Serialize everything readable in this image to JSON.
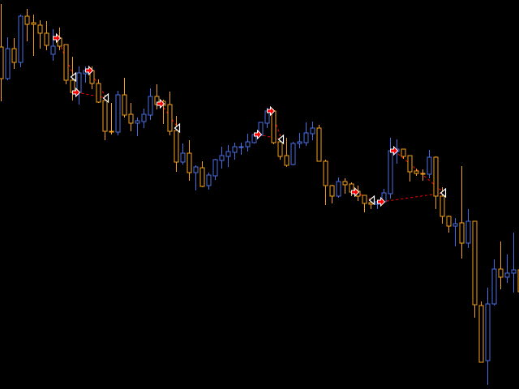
{
  "chart_data": {
    "type": "candlestick",
    "title": "",
    "xlabel": "",
    "ylabel": "",
    "grid": false,
    "ylim": [
      0,
      480
    ],
    "colors": {
      "background": "#000000",
      "bull": "#4a6fe3",
      "bear": "#f7a21b",
      "entry_arrow": "#ff0000",
      "entry_outline": "#ffffff",
      "exit_marker": "#ffffff",
      "trade_line": "#ff0000"
    },
    "candles": [
      {
        "o": 422,
        "h": 475,
        "l": 355,
        "c": 383
      },
      {
        "o": 383,
        "h": 434,
        "l": 381,
        "c": 420
      },
      {
        "o": 420,
        "h": 433,
        "l": 395,
        "c": 403
      },
      {
        "o": 403,
        "h": 462,
        "l": 397,
        "c": 460
      },
      {
        "o": 460,
        "h": 469,
        "l": 429,
        "c": 450
      },
      {
        "o": 452,
        "h": 462,
        "l": 411,
        "c": 450
      },
      {
        "o": 449,
        "h": 455,
        "l": 420,
        "c": 439
      },
      {
        "o": 439,
        "h": 454,
        "l": 418,
        "c": 424
      },
      {
        "o": 413,
        "h": 444,
        "l": 405,
        "c": 423
      },
      {
        "o": 433,
        "h": 446,
        "l": 418,
        "c": 423
      },
      {
        "o": 425,
        "h": 425,
        "l": 376,
        "c": 381
      },
      {
        "o": 381,
        "h": 410,
        "l": 356,
        "c": 366
      },
      {
        "o": 366,
        "h": 398,
        "l": 351,
        "c": 390
      },
      {
        "o": 389,
        "h": 398,
        "l": 378,
        "c": 393
      },
      {
        "o": 393,
        "h": 398,
        "l": 370,
        "c": 377
      },
      {
        "o": 377,
        "h": 382,
        "l": 353,
        "c": 354
      },
      {
        "o": 356,
        "h": 363,
        "l": 307,
        "c": 318
      },
      {
        "o": 318,
        "h": 353,
        "l": 314,
        "c": 317
      },
      {
        "o": 317,
        "h": 368,
        "l": 313,
        "c": 363
      },
      {
        "o": 363,
        "h": 384,
        "l": 335,
        "c": 338
      },
      {
        "o": 339,
        "h": 353,
        "l": 318,
        "c": 328
      },
      {
        "o": 328,
        "h": 335,
        "l": 312,
        "c": 331
      },
      {
        "o": 330,
        "h": 346,
        "l": 322,
        "c": 339
      },
      {
        "o": 338,
        "h": 371,
        "l": 332,
        "c": 361
      },
      {
        "o": 361,
        "h": 376,
        "l": 345,
        "c": 351
      },
      {
        "o": 355,
        "h": 357,
        "l": 327,
        "c": 350
      },
      {
        "o": 351,
        "h": 367,
        "l": 313,
        "c": 318
      },
      {
        "o": 319,
        "h": 337,
        "l": 268,
        "c": 280
      },
      {
        "o": 280,
        "h": 303,
        "l": 277,
        "c": 291
      },
      {
        "o": 291,
        "h": 307,
        "l": 257,
        "c": 267
      },
      {
        "o": 267,
        "h": 276,
        "l": 245,
        "c": 274
      },
      {
        "o": 273,
        "h": 281,
        "l": 249,
        "c": 250
      },
      {
        "o": 251,
        "h": 267,
        "l": 246,
        "c": 264
      },
      {
        "o": 263,
        "h": 284,
        "l": 258,
        "c": 283
      },
      {
        "o": 282,
        "h": 299,
        "l": 272,
        "c": 288
      },
      {
        "o": 287,
        "h": 301,
        "l": 274,
        "c": 293
      },
      {
        "o": 292,
        "h": 304,
        "l": 283,
        "c": 299
      },
      {
        "o": 298,
        "h": 304,
        "l": 289,
        "c": 299
      },
      {
        "o": 299,
        "h": 315,
        "l": 293,
        "c": 305
      },
      {
        "o": 304,
        "h": 314,
        "l": 303,
        "c": 314
      },
      {
        "o": 313,
        "h": 329,
        "l": 312,
        "c": 329
      },
      {
        "o": 328,
        "h": 347,
        "l": 322,
        "c": 343
      },
      {
        "o": 343,
        "h": 345,
        "l": 302,
        "c": 304
      },
      {
        "o": 305,
        "h": 310,
        "l": 283,
        "c": 287
      },
      {
        "o": 288,
        "h": 310,
        "l": 274,
        "c": 276
      },
      {
        "o": 277,
        "h": 305,
        "l": 276,
        "c": 303
      },
      {
        "o": 303,
        "h": 316,
        "l": 297,
        "c": 305
      },
      {
        "o": 304,
        "h": 329,
        "l": 300,
        "c": 316
      },
      {
        "o": 315,
        "h": 330,
        "l": 307,
        "c": 322
      },
      {
        "o": 322,
        "h": 326,
        "l": 281,
        "c": 281
      },
      {
        "o": 281,
        "h": 283,
        "l": 227,
        "c": 251
      },
      {
        "o": 251,
        "h": 252,
        "l": 229,
        "c": 238
      },
      {
        "o": 238,
        "h": 261,
        "l": 236,
        "c": 256
      },
      {
        "o": 256,
        "h": 260,
        "l": 241,
        "c": 252
      },
      {
        "o": 253,
        "h": 255,
        "l": 238,
        "c": 243
      },
      {
        "o": 244,
        "h": 251,
        "l": 232,
        "c": 238
      },
      {
        "o": 239,
        "h": 239,
        "l": 218,
        "c": 229
      },
      {
        "o": 230,
        "h": 233,
        "l": 222,
        "c": 228
      },
      {
        "o": 228,
        "h": 233,
        "l": 222,
        "c": 231
      },
      {
        "o": 231,
        "h": 247,
        "l": 230,
        "c": 242
      },
      {
        "o": 241,
        "h": 310,
        "l": 235,
        "c": 294
      },
      {
        "o": 293,
        "h": 308,
        "l": 278,
        "c": 296
      },
      {
        "o": 296,
        "h": 296,
        "l": 284,
        "c": 287
      },
      {
        "o": 288,
        "h": 288,
        "l": 256,
        "c": 268
      },
      {
        "o": 269,
        "h": 272,
        "l": 263,
        "c": 266
      },
      {
        "o": 266,
        "h": 271,
        "l": 257,
        "c": 265
      },
      {
        "o": 265,
        "h": 295,
        "l": 260,
        "c": 286
      },
      {
        "o": 286,
        "h": 287,
        "l": 222,
        "c": 238
      },
      {
        "o": 238,
        "h": 249,
        "l": 204,
        "c": 213
      },
      {
        "o": 213,
        "h": 214,
        "l": 193,
        "c": 201
      },
      {
        "o": 201,
        "h": 211,
        "l": 176,
        "c": 204
      },
      {
        "o": 205,
        "h": 275,
        "l": 161,
        "c": 180
      },
      {
        "o": 180,
        "h": 222,
        "l": 174,
        "c": 207
      },
      {
        "o": 207,
        "h": 207,
        "l": 88,
        "c": 104
      },
      {
        "o": 103,
        "h": 108,
        "l": 33,
        "c": 33
      },
      {
        "o": 35,
        "h": 125,
        "l": 5,
        "c": 105
      },
      {
        "o": 105,
        "h": 160,
        "l": 103,
        "c": 148
      },
      {
        "o": 148,
        "h": 182,
        "l": 123,
        "c": 138
      },
      {
        "o": 138,
        "h": 166,
        "l": 131,
        "c": 143
      },
      {
        "o": 143,
        "h": 193,
        "l": 119,
        "c": 147
      },
      {
        "o": 147,
        "h": 155,
        "l": 115,
        "c": 120
      }
    ],
    "entries": [
      {
        "candle": 9,
        "price": 433
      },
      {
        "candle": 12,
        "price": 366
      },
      {
        "candle": 14,
        "price": 393
      },
      {
        "candle": 25,
        "price": 352
      },
      {
        "candle": 40,
        "price": 314
      },
      {
        "candle": 42,
        "price": 343
      },
      {
        "candle": 55,
        "price": 243
      },
      {
        "candle": 59,
        "price": 231
      },
      {
        "candle": 61,
        "price": 294
      }
    ],
    "exits": [
      {
        "candle": 11,
        "price": 385
      },
      {
        "candle": 16,
        "price": 359
      },
      {
        "candle": 27,
        "price": 322
      },
      {
        "candle": 43,
        "price": 308
      },
      {
        "candle": 57,
        "price": 233
      },
      {
        "candle": 68,
        "price": 242
      }
    ],
    "trades": [
      {
        "entry": 0,
        "exit": 0
      },
      {
        "entry": 1,
        "exit": 1
      },
      {
        "entry": 2,
        "exit": 1
      },
      {
        "entry": 3,
        "exit": 2
      },
      {
        "entry": 4,
        "exit": 3
      },
      {
        "entry": 5,
        "exit": 3
      },
      {
        "entry": 6,
        "exit": 4
      },
      {
        "entry": 7,
        "exit": 5
      },
      {
        "entry": 8,
        "exit": 5
      }
    ]
  }
}
